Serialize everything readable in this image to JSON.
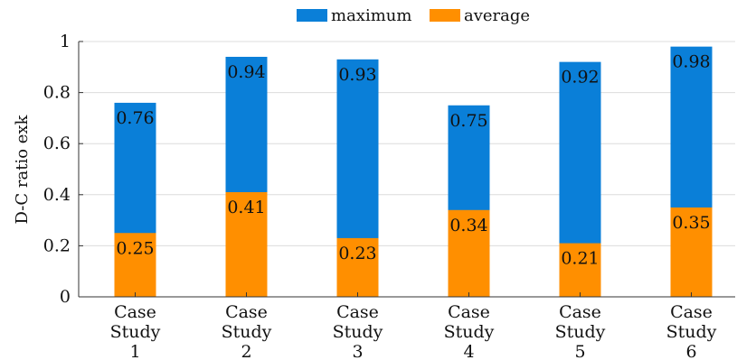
{
  "chart_data": {
    "type": "bar",
    "stacking": "overlay",
    "categories": [
      [
        "Case",
        "Study",
        "1"
      ],
      [
        "Case",
        "Study",
        "2"
      ],
      [
        "Case",
        "Study",
        "3"
      ],
      [
        "Case",
        "Study",
        "4"
      ],
      [
        "Case",
        "Study",
        "5"
      ],
      [
        "Case",
        "Study",
        "6"
      ]
    ],
    "series": [
      {
        "name": "maximum",
        "color": "#0a7fd8",
        "values": [
          0.76,
          0.94,
          0.93,
          0.75,
          0.92,
          0.98
        ]
      },
      {
        "name": "average",
        "color": "#ff8f00",
        "values": [
          0.25,
          0.41,
          0.23,
          0.34,
          0.21,
          0.35
        ]
      }
    ],
    "value_labels": {
      "maximum": [
        "0.76",
        "0.94",
        "0.93",
        "0.75",
        "0.92",
        "0.98"
      ],
      "average": [
        "0.25",
        "0.41",
        "0.23",
        "0.34",
        "0.21",
        "0.35"
      ]
    },
    "title": "",
    "xlabel": "",
    "ylabel": "D-C ratio exk",
    "ylim": [
      0,
      1
    ],
    "yticks": [
      0,
      0.2,
      0.4,
      0.6,
      0.8,
      1
    ],
    "ytick_labels": [
      "0",
      "0.2",
      "0.4",
      "0.6",
      "0.8",
      "1"
    ],
    "grid": "horizontal",
    "legend_position": "top-center"
  }
}
